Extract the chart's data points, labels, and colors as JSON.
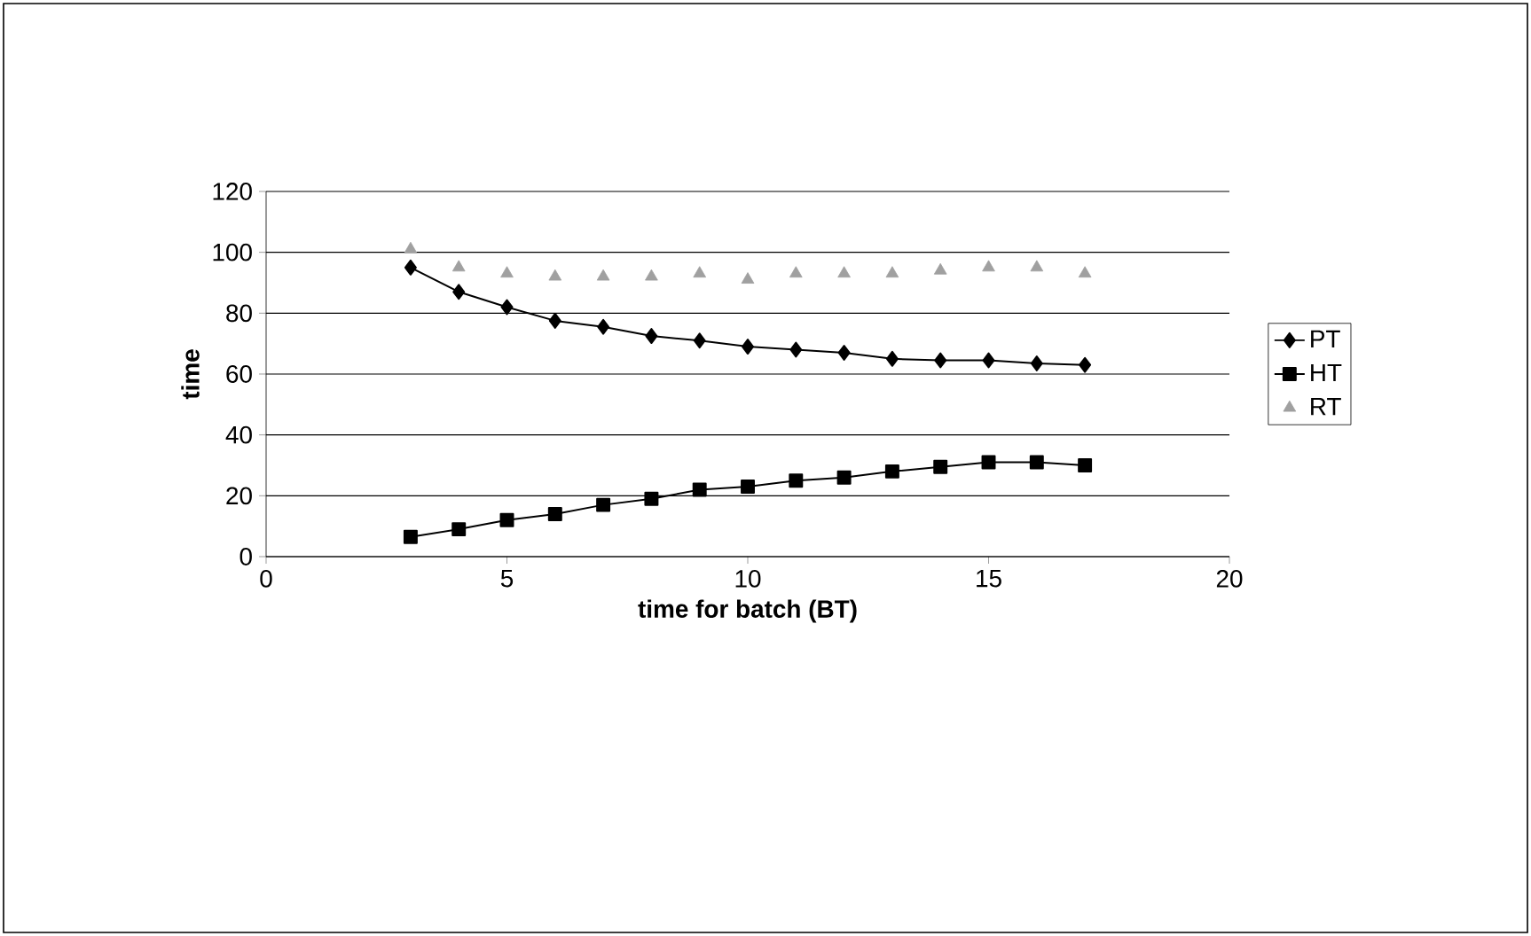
{
  "chart_data": {
    "type": "line",
    "xlabel": "time for batch (BT)",
    "ylabel": "time",
    "x": [
      3,
      4,
      5,
      6,
      7,
      8,
      9,
      10,
      11,
      12,
      13,
      14,
      15,
      16,
      17
    ],
    "series": [
      {
        "name": "PT",
        "color": "#000000",
        "marker": "diamond",
        "values": [
          95,
          87,
          82,
          77.5,
          75.5,
          72.5,
          71,
          69,
          68,
          67,
          65,
          64.5,
          64.5,
          63.5,
          63
        ]
      },
      {
        "name": "HT",
        "color": "#000000",
        "marker": "square",
        "values": [
          6.5,
          9,
          12,
          14,
          17,
          19,
          22,
          23,
          25,
          26,
          28,
          29.5,
          31,
          31,
          30
        ]
      },
      {
        "name": "RT",
        "type": "scatter",
        "color": "#a0a0a0",
        "marker": "triangle",
        "values": [
          101,
          95,
          93,
          92,
          92,
          92,
          93,
          91,
          93,
          93,
          93,
          94,
          95,
          95,
          93
        ]
      }
    ],
    "xlim": [
      0,
      20
    ],
    "xticks": [
      0,
      5,
      10,
      15,
      20
    ],
    "ylim": [
      0,
      120
    ],
    "yticks": [
      0,
      20,
      40,
      60,
      80,
      100,
      120
    ],
    "grid": "y",
    "legend": "right"
  }
}
